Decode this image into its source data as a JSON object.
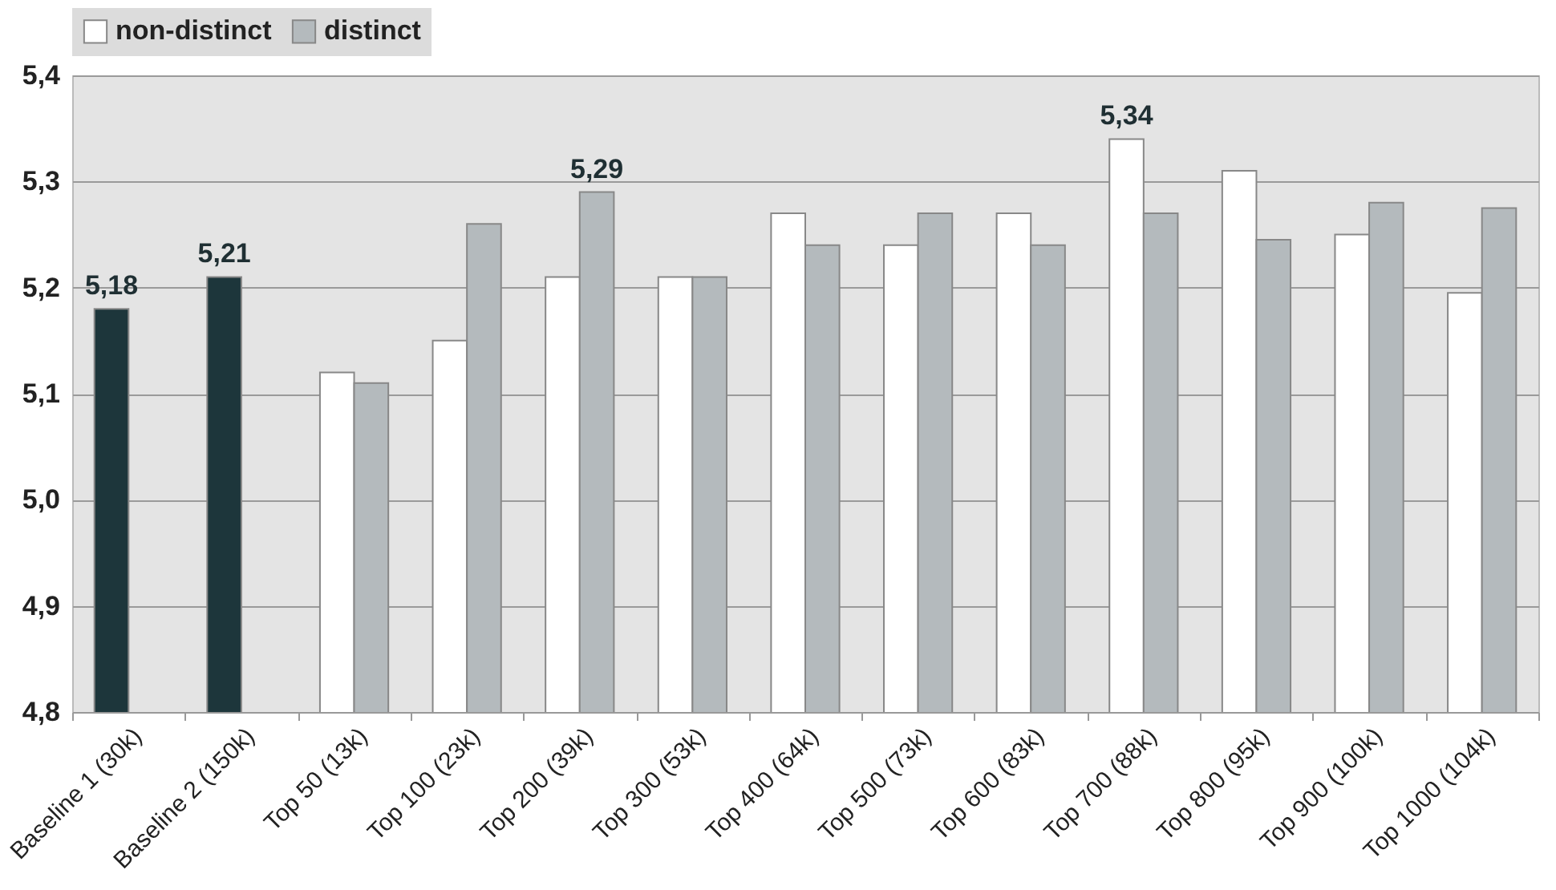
{
  "chart_data": {
    "type": "bar",
    "categories": [
      "Baseline 1 (30k)",
      "Baseline 2 (150k)",
      "Top 50 (13k)",
      "Top 100 (23k)",
      "Top 200 (39k)",
      "Top 300 (53k)",
      "Top 400 (64k)",
      "Top 500 (73k)",
      "Top 600 (83k)",
      "Top 700 (88k)",
      "Top 800 (95k)",
      "Top 900 (100k)",
      "Top 1000 (104k)"
    ],
    "series": [
      {
        "name": "non-distinct",
        "color": "#ffffff",
        "values": [
          null,
          null,
          5.12,
          5.15,
          5.21,
          5.21,
          5.27,
          5.24,
          5.27,
          5.34,
          5.31,
          5.25,
          5.195
        ],
        "value_labels": [
          null,
          null,
          null,
          null,
          null,
          null,
          null,
          null,
          null,
          "5,34",
          null,
          null,
          null
        ]
      },
      {
        "name": "distinct",
        "color": "#b4babd",
        "values": [
          null,
          null,
          5.11,
          5.26,
          5.29,
          5.21,
          5.24,
          5.27,
          5.24,
          5.27,
          5.245,
          5.28,
          5.275
        ],
        "value_labels": [
          null,
          null,
          null,
          null,
          "5,29",
          null,
          null,
          null,
          null,
          null,
          null,
          null,
          null
        ]
      },
      {
        "color": "#1d363b",
        "values": [
          5.18,
          5.21,
          null,
          null,
          null,
          null,
          null,
          null,
          null,
          null,
          null,
          null,
          null
        ],
        "value_labels": [
          "5,18",
          "5,21",
          null,
          null,
          null,
          null,
          null,
          null,
          null,
          null,
          null,
          null,
          null
        ]
      }
    ],
    "ylim": [
      4.8,
      5.4
    ],
    "yticks": [
      {
        "value": 4.8,
        "label": "4,8"
      },
      {
        "value": 4.9,
        "label": "4,9"
      },
      {
        "value": 5.0,
        "label": "5,0"
      },
      {
        "value": 5.1,
        "label": "5,1"
      },
      {
        "value": 5.2,
        "label": "5,2"
      },
      {
        "value": 5.3,
        "label": "5,3"
      },
      {
        "value": 5.4,
        "label": "5,4"
      }
    ],
    "grid": "y",
    "legend": "top left"
  }
}
